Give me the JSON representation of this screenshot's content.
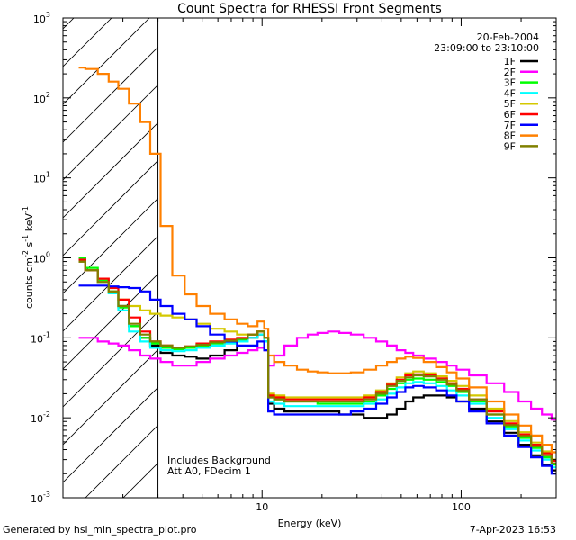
{
  "chart_data": {
    "type": "line",
    "title": "Count Spectra for RHESSI Front Segments",
    "xlabel": "Energy (keV)",
    "ylabel_parts": [
      "counts cm",
      "-2",
      " s",
      "-1",
      " keV",
      "-1"
    ],
    "x_scale": "log",
    "y_scale": "log",
    "xlim": [
      1,
      300
    ],
    "ylim": [
      0.001,
      1000
    ],
    "x_major_ticks": [
      {
        "value": 10,
        "label": "10"
      },
      {
        "value": 100,
        "label": "100"
      }
    ],
    "y_major_ticks": [
      {
        "value": 0.001,
        "base": "10",
        "exp": "-3"
      },
      {
        "value": 0.01,
        "base": "10",
        "exp": "-2"
      },
      {
        "value": 0.1,
        "base": "10",
        "exp": "-1"
      },
      {
        "value": 1,
        "base": "10",
        "exp": "0"
      },
      {
        "value": 10,
        "base": "10",
        "exp": "1"
      },
      {
        "value": 100,
        "base": "10",
        "exp": "2"
      },
      {
        "value": 1000,
        "base": "10",
        "exp": "3"
      }
    ],
    "date": "20-Feb-2004",
    "time_range": "23:09:00 to 23:10:00",
    "hatched_region_keV": [
      1,
      3
    ],
    "annotations": [
      "Includes Background",
      "Att A0, FDecim 1"
    ],
    "energy_keV": [
      1.2,
      1.4,
      1.6,
      1.8,
      2,
      2.3,
      2.6,
      2.9,
      3.3,
      3.8,
      4.4,
      5,
      6,
      7,
      8,
      9,
      10,
      10.5,
      11,
      12,
      14,
      16,
      18,
      20,
      23,
      26,
      30,
      35,
      40,
      45,
      50,
      55,
      60,
      70,
      80,
      90,
      100,
      120,
      150,
      180,
      210,
      240,
      270,
      300
    ],
    "series": [
      {
        "name": "1F",
        "color": "#000000",
        "values": [
          0.9,
          0.7,
          0.5,
          0.38,
          0.25,
          0.14,
          0.1,
          0.08,
          0.065,
          0.06,
          0.058,
          0.055,
          0.06,
          0.07,
          0.09,
          0.1,
          0.11,
          0.09,
          0.015,
          0.013,
          0.012,
          0.012,
          0.012,
          0.012,
          0.012,
          0.011,
          0.011,
          0.01,
          0.01,
          0.011,
          0.013,
          0.016,
          0.018,
          0.019,
          0.019,
          0.018,
          0.016,
          0.013,
          0.009,
          0.0065,
          0.0046,
          0.0034,
          0.0026,
          0.0022
        ]
      },
      {
        "name": "2F",
        "color": "#ff00ff",
        "values": [
          0.1,
          0.1,
          0.09,
          0.085,
          0.08,
          0.07,
          0.06,
          0.055,
          0.05,
          0.045,
          0.045,
          0.05,
          0.055,
          0.06,
          0.065,
          0.07,
          0.075,
          0.07,
          0.045,
          0.06,
          0.08,
          0.1,
          0.11,
          0.115,
          0.12,
          0.115,
          0.11,
          0.1,
          0.09,
          0.08,
          0.07,
          0.065,
          0.06,
          0.055,
          0.05,
          0.045,
          0.04,
          0.034,
          0.027,
          0.021,
          0.016,
          0.013,
          0.011,
          0.0095
        ]
      },
      {
        "name": "3F",
        "color": "#00ff00",
        "values": [
          1.0,
          0.75,
          0.52,
          0.38,
          0.24,
          0.14,
          0.1,
          0.085,
          0.075,
          0.072,
          0.075,
          0.08,
          0.085,
          0.09,
          0.095,
          0.11,
          0.12,
          0.1,
          0.018,
          0.017,
          0.016,
          0.016,
          0.016,
          0.015,
          0.015,
          0.015,
          0.015,
          0.016,
          0.019,
          0.023,
          0.027,
          0.03,
          0.031,
          0.03,
          0.028,
          0.025,
          0.021,
          0.016,
          0.011,
          0.0078,
          0.0056,
          0.0042,
          0.0032,
          0.0026
        ]
      },
      {
        "name": "4F",
        "color": "#00ffff",
        "values": [
          0.95,
          0.7,
          0.5,
          0.36,
          0.22,
          0.12,
          0.09,
          0.075,
          0.07,
          0.068,
          0.07,
          0.075,
          0.08,
          0.085,
          0.09,
          0.1,
          0.11,
          0.09,
          0.016,
          0.015,
          0.014,
          0.014,
          0.014,
          0.014,
          0.014,
          0.014,
          0.014,
          0.015,
          0.017,
          0.02,
          0.024,
          0.027,
          0.028,
          0.027,
          0.025,
          0.022,
          0.019,
          0.015,
          0.01,
          0.0072,
          0.0052,
          0.0039,
          0.003,
          0.0024
        ]
      },
      {
        "name": "5F",
        "color": "#d4c800",
        "values": [
          0.9,
          0.7,
          0.5,
          0.38,
          0.3,
          0.25,
          0.22,
          0.2,
          0.19,
          0.18,
          0.17,
          0.15,
          0.13,
          0.12,
          0.11,
          0.11,
          0.12,
          0.1,
          0.02,
          0.019,
          0.018,
          0.018,
          0.018,
          0.018,
          0.018,
          0.018,
          0.018,
          0.019,
          0.022,
          0.027,
          0.032,
          0.036,
          0.038,
          0.036,
          0.033,
          0.029,
          0.025,
          0.019,
          0.013,
          0.0091,
          0.0066,
          0.0049,
          0.0038,
          0.003
        ]
      },
      {
        "name": "6F",
        "color": "#ff0000",
        "values": [
          0.95,
          0.7,
          0.55,
          0.42,
          0.3,
          0.18,
          0.12,
          0.09,
          0.08,
          0.075,
          0.078,
          0.085,
          0.09,
          0.095,
          0.1,
          0.11,
          0.12,
          0.1,
          0.019,
          0.018,
          0.017,
          0.017,
          0.017,
          0.017,
          0.017,
          0.017,
          0.017,
          0.018,
          0.021,
          0.026,
          0.03,
          0.034,
          0.035,
          0.034,
          0.031,
          0.027,
          0.023,
          0.017,
          0.012,
          0.0085,
          0.0062,
          0.0046,
          0.0036,
          0.0029
        ]
      },
      {
        "name": "7F",
        "color": "#0000ff",
        "values": [
          0.45,
          0.45,
          0.45,
          0.44,
          0.43,
          0.42,
          0.38,
          0.3,
          0.25,
          0.2,
          0.17,
          0.14,
          0.11,
          0.09,
          0.08,
          0.08,
          0.09,
          0.07,
          0.012,
          0.011,
          0.011,
          0.011,
          0.011,
          0.011,
          0.011,
          0.011,
          0.012,
          0.013,
          0.015,
          0.018,
          0.021,
          0.024,
          0.025,
          0.024,
          0.022,
          0.019,
          0.016,
          0.012,
          0.0085,
          0.006,
          0.0043,
          0.0032,
          0.0025,
          0.002
        ]
      },
      {
        "name": "8F",
        "color": "#ff8000",
        "values": [
          240,
          230,
          200,
          160,
          130,
          85,
          50,
          20,
          2.5,
          0.6,
          0.35,
          0.25,
          0.2,
          0.17,
          0.15,
          0.14,
          0.16,
          0.13,
          0.06,
          0.05,
          0.045,
          0.04,
          0.038,
          0.037,
          0.036,
          0.036,
          0.037,
          0.04,
          0.045,
          0.05,
          0.055,
          0.058,
          0.056,
          0.05,
          0.043,
          0.037,
          0.031,
          0.024,
          0.016,
          0.011,
          0.008,
          0.006,
          0.0046,
          0.0037
        ]
      },
      {
        "name": "9F",
        "color": "#808000",
        "values": [
          0.9,
          0.7,
          0.5,
          0.38,
          0.25,
          0.15,
          0.11,
          0.09,
          0.08,
          0.075,
          0.078,
          0.082,
          0.088,
          0.092,
          0.098,
          0.11,
          0.12,
          0.1,
          0.018,
          0.017,
          0.016,
          0.016,
          0.016,
          0.016,
          0.016,
          0.016,
          0.016,
          0.017,
          0.02,
          0.025,
          0.029,
          0.032,
          0.034,
          0.033,
          0.03,
          0.026,
          0.022,
          0.017,
          0.011,
          0.0081,
          0.0059,
          0.0044,
          0.0034,
          0.0027
        ]
      }
    ]
  },
  "footer": {
    "left": "Generated by hsi_min_spectra_plot.pro",
    "right": "7-Apr-2023 16:53"
  }
}
